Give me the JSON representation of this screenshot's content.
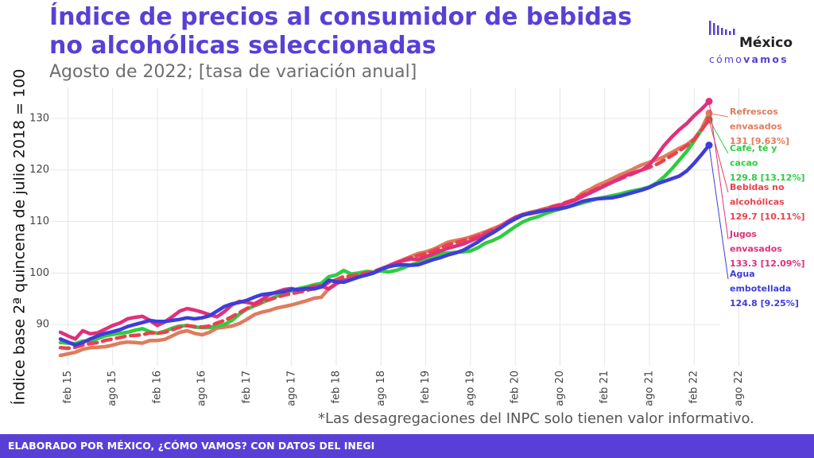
{
  "header": {
    "title": "Índice de precios al consumidor de bebidas no alcohólicas seleccionadas",
    "subtitle": "Agosto de 2022; [tasa de variación anual]"
  },
  "logo": {
    "name": "México",
    "tag_light": "cómo",
    "tag_bold": "vamos"
  },
  "note": "*Las desagregaciones del INPC solo tienen valor informativo.",
  "footer": {
    "text": "ELABORADO POR MÉXICO, ¿CÓMO VAMOS? CON DATOS DEL INEGI"
  },
  "chart_data": {
    "type": "line",
    "title": "Índice de precios al consumidor de bebidas no alcohólicas seleccionadas",
    "subtitle": "Agosto de 2022; [tasa de variación anual]",
    "ylabel": "Índice base 2ª quincena de julio 2018 = 100",
    "xlabel": "",
    "ylim": [
      82,
      136
    ],
    "yticks": [
      90,
      100,
      110,
      120,
      130
    ],
    "xticks": [
      "feb 15",
      "ago 15",
      "feb 16",
      "ago 16",
      "feb 17",
      "ago 17",
      "feb 18",
      "ago 18",
      "feb 19",
      "ago 19",
      "feb 20",
      "ago 20",
      "feb 21",
      "ago 21",
      "feb 22",
      "ago 22"
    ],
    "x_start": "ene 15",
    "x_end": "ago 22",
    "frequency": "monthly",
    "grid": true,
    "series": [
      {
        "name": "Refrescos envasados",
        "color": "#e07b5c",
        "dash": false,
        "end_label": [
          "Refrescos",
          "envasados",
          "131 [9.63%]"
        ],
        "values": [
          84.0,
          84.3,
          84.6,
          85.2,
          85.5,
          85.6,
          85.7,
          86.0,
          86.4,
          86.6,
          86.5,
          86.4,
          86.9,
          86.9,
          87.1,
          87.8,
          88.5,
          88.8,
          88.3,
          88.0,
          88.5,
          89.3,
          89.5,
          89.7,
          90.2,
          91.0,
          91.9,
          92.4,
          92.7,
          93.2,
          93.5,
          93.8,
          94.2,
          94.6,
          95.1,
          95.3,
          97.0,
          98.0,
          98.5,
          99.0,
          99.3,
          99.6,
          100.0,
          100.6,
          101.3,
          102.0,
          102.6,
          103.2,
          103.8,
          104.1,
          104.6,
          105.3,
          106.0,
          106.3,
          106.6,
          107.0,
          107.5,
          108.0,
          108.6,
          109.2,
          110.0,
          110.8,
          111.4,
          111.8,
          112.1,
          112.5,
          112.9,
          113.2,
          113.7,
          114.3,
          115.5,
          116.2,
          117.0,
          117.6,
          118.3,
          119.0,
          119.6,
          120.3,
          121.0,
          121.5,
          122.0,
          122.6,
          123.4,
          124.2,
          124.9,
          126.0,
          128.0,
          131.0
        ]
      },
      {
        "name": "Café, té y cacao",
        "color": "#2ecc40",
        "dash": false,
        "end_label": [
          "Café, té y",
          "cacao",
          "129.8 [13.12%]"
        ],
        "values": [
          86.5,
          86.4,
          86.3,
          86.8,
          86.8,
          87.3,
          87.8,
          88.1,
          88.3,
          88.5,
          88.9,
          89.2,
          88.6,
          88.3,
          88.7,
          89.3,
          89.7,
          89.8,
          89.5,
          89.4,
          89.4,
          89.7,
          90.0,
          90.8,
          92.0,
          93.0,
          93.6,
          94.2,
          94.9,
          95.5,
          96.0,
          96.6,
          97.0,
          97.3,
          97.7,
          98.0,
          99.3,
          99.6,
          100.5,
          99.8,
          100.0,
          100.3,
          100.2,
          100.4,
          100.2,
          100.5,
          101.0,
          101.6,
          102.0,
          102.8,
          103.3,
          103.7,
          103.9,
          104.0,
          104.1,
          104.3,
          104.9,
          105.8,
          106.3,
          107.0,
          108.0,
          109.0,
          109.9,
          110.5,
          110.9,
          111.5,
          112.0,
          112.4,
          112.8,
          113.2,
          113.6,
          114.0,
          114.4,
          114.7,
          115.0,
          115.3,
          115.7,
          116.0,
          116.3,
          116.7,
          117.5,
          118.7,
          120.2,
          121.9,
          123.6,
          125.6,
          127.8,
          129.8
        ]
      },
      {
        "name": "Bebidas no alcohólicas",
        "color": "#e8424f",
        "dash": true,
        "end_label": [
          "Bebidas no",
          "alcohólicas",
          "129.7 [10.11%]"
        ],
        "values": [
          85.5,
          85.4,
          85.6,
          86.0,
          86.3,
          86.5,
          86.9,
          87.2,
          87.5,
          87.8,
          87.9,
          88.0,
          88.4,
          88.3,
          88.5,
          89.0,
          89.5,
          89.8,
          89.6,
          89.5,
          89.7,
          90.3,
          90.8,
          91.5,
          92.3,
          93.1,
          93.8,
          94.3,
          94.8,
          95.3,
          95.7,
          96.0,
          96.3,
          96.6,
          97.0,
          97.2,
          98.2,
          98.7,
          99.3,
          99.4,
          99.7,
          100.0,
          100.3,
          100.8,
          101.4,
          102.0,
          102.5,
          103.0,
          103.4,
          103.8,
          104.3,
          104.9,
          105.5,
          105.9,
          106.3,
          106.7,
          107.2,
          107.8,
          108.4,
          109.0,
          109.8,
          110.5,
          111.2,
          111.6,
          112.0,
          112.4,
          112.9,
          113.3,
          113.8,
          114.3,
          115.1,
          115.7,
          116.4,
          117.0,
          117.6,
          118.2,
          118.8,
          119.4,
          120.0,
          120.5,
          121.1,
          121.9,
          122.8,
          123.7,
          124.7,
          125.9,
          127.8,
          129.7
        ]
      },
      {
        "name": "Jugos envasados",
        "color": "#e0307a",
        "dash": false,
        "end_label": [
          "Jugos",
          "envasados",
          "133.3 [12.09%]"
        ],
        "values": [
          88.5,
          87.8,
          87.2,
          88.8,
          88.2,
          88.4,
          89.1,
          89.8,
          90.3,
          91.1,
          91.4,
          91.6,
          90.8,
          89.8,
          90.5,
          91.5,
          92.6,
          93.1,
          92.8,
          92.4,
          91.9,
          91.5,
          92.5,
          93.8,
          94.5,
          94.3,
          94.0,
          94.8,
          95.8,
          96.3,
          96.8,
          97.0,
          96.6,
          96.9,
          97.4,
          97.5,
          96.9,
          97.9,
          98.6,
          98.8,
          99.3,
          99.6,
          100.0,
          100.8,
          101.4,
          102.0,
          102.4,
          102.7,
          102.6,
          103.2,
          103.7,
          104.3,
          104.8,
          105.2,
          105.6,
          106.2,
          106.8,
          107.5,
          108.1,
          108.8,
          110.0,
          110.8,
          111.3,
          111.5,
          111.8,
          112.2,
          112.7,
          113.1,
          113.6,
          114.1,
          114.8,
          115.5,
          116.2,
          116.9,
          117.6,
          118.3,
          119.0,
          119.5,
          120.0,
          121.0,
          122.8,
          124.8,
          126.4,
          127.8,
          129.0,
          130.5,
          131.8,
          133.3
        ]
      },
      {
        "name": "Agua embotellada",
        "color": "#3d3ddb",
        "dash": false,
        "end_label": [
          "Agua",
          "embotellada",
          "124.8 [9.25%]"
        ],
        "values": [
          87.2,
          86.6,
          86.0,
          86.5,
          87.2,
          87.8,
          88.3,
          88.6,
          89.0,
          89.6,
          90.0,
          90.4,
          90.8,
          90.6,
          90.6,
          90.8,
          91.0,
          91.3,
          91.1,
          91.3,
          91.7,
          92.6,
          93.5,
          94.0,
          94.3,
          94.7,
          95.3,
          95.8,
          96.0,
          96.2,
          96.4,
          96.8,
          96.8,
          97.0,
          96.9,
          97.3,
          98.6,
          98.3,
          98.2,
          98.7,
          99.2,
          99.6,
          100.0,
          100.7,
          101.2,
          101.5,
          101.6,
          101.5,
          101.6,
          102.1,
          102.6,
          103.0,
          103.5,
          103.9,
          104.4,
          105.2,
          106.0,
          107.0,
          107.8,
          108.7,
          109.7,
          110.5,
          111.2,
          111.6,
          111.9,
          112.1,
          112.3,
          112.5,
          112.8,
          113.3,
          113.9,
          114.2,
          114.4,
          114.5,
          114.6,
          114.9,
          115.3,
          115.7,
          116.1,
          116.6,
          117.3,
          117.8,
          118.3,
          118.8,
          119.8,
          121.3,
          123.0,
          124.8
        ]
      }
    ]
  }
}
